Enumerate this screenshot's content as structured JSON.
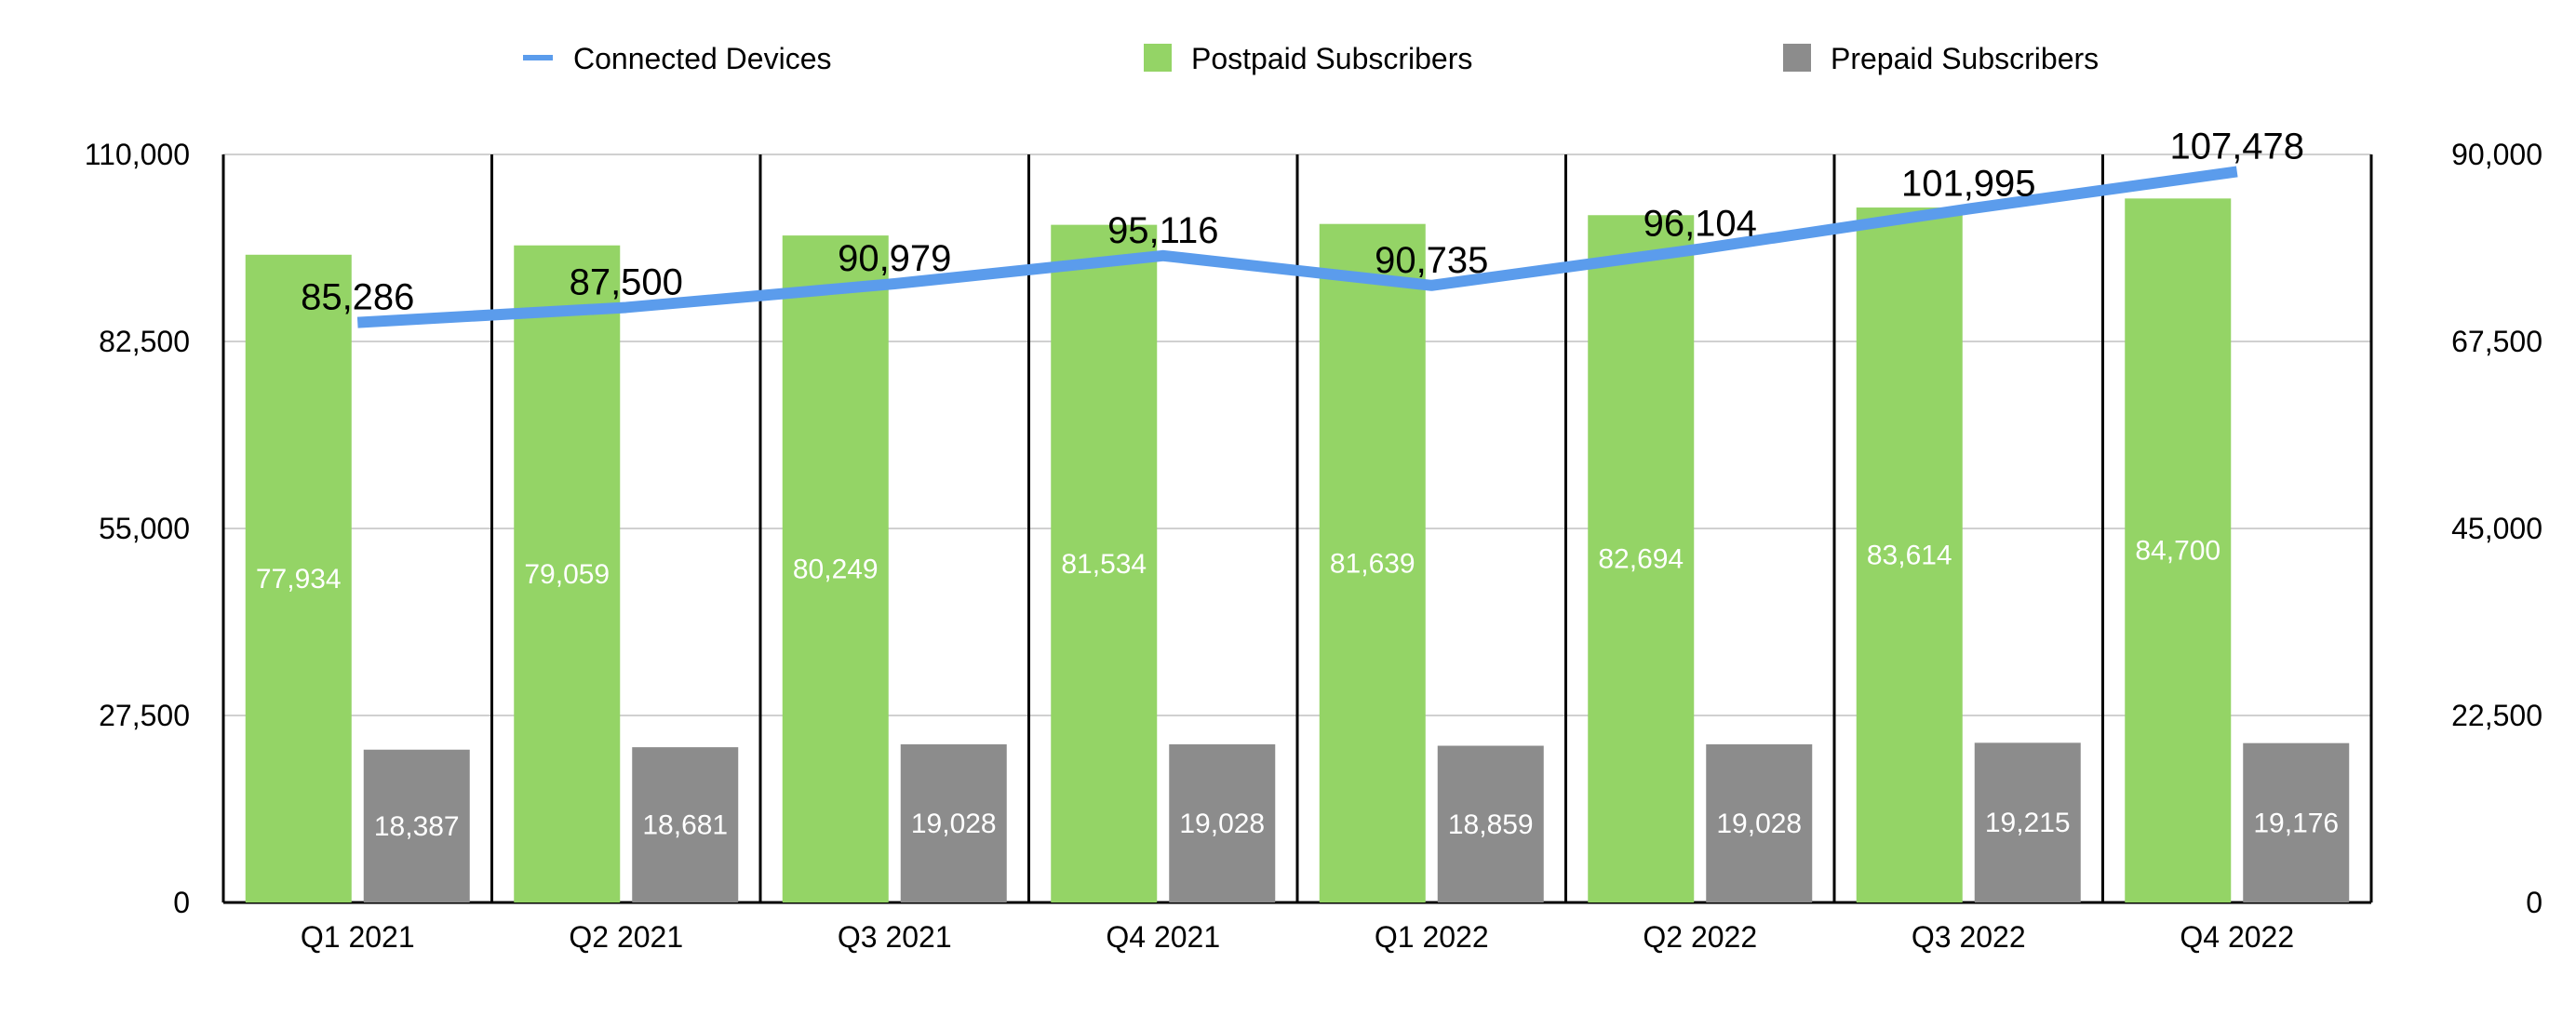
{
  "chart_data": {
    "type": "bar",
    "categories": [
      "Q1 2021",
      "Q2 2021",
      "Q3 2021",
      "Q4 2021",
      "Q1 2022",
      "Q2 2022",
      "Q3 2022",
      "Q4 2022"
    ],
    "left_axis": {
      "ylim": [
        0,
        110000
      ],
      "ticks": [
        "0",
        "27,500",
        "55,000",
        "82,500",
        "110,000"
      ]
    },
    "right_axis": {
      "ylim": [
        0,
        90000
      ],
      "ticks": [
        "0",
        "22,500",
        "45,000",
        "67,500",
        "90,000"
      ]
    },
    "series": [
      {
        "name": "Connected Devices",
        "kind": "line",
        "axis": "left",
        "color": "#5b9cec",
        "values": [
          85286,
          87500,
          90979,
          95116,
          90735,
          96104,
          101995,
          107478
        ],
        "labels": [
          "85,286",
          "87,500",
          "90,979",
          "95,116",
          "90,735",
          "96,104",
          "101,995",
          "107,478"
        ]
      },
      {
        "name": "Postpaid Subscribers",
        "kind": "bar",
        "axis": "right",
        "color": "#94d466",
        "values": [
          77934,
          79059,
          80249,
          81534,
          81639,
          82694,
          83614,
          84700
        ],
        "labels": [
          "77,934",
          "79,059",
          "80,249",
          "81,534",
          "81,639",
          "82,694",
          "83,614",
          "84,700"
        ]
      },
      {
        "name": "Prepaid Subscribers",
        "kind": "bar",
        "axis": "right",
        "color": "#8c8c8c",
        "values": [
          18387,
          18681,
          19028,
          19028,
          18859,
          19028,
          19215,
          19176
        ],
        "labels": [
          "18,387",
          "18,681",
          "19,028",
          "19,028",
          "18,859",
          "19,028",
          "19,215",
          "19,176"
        ]
      }
    ],
    "grid": true,
    "legend_position": "top"
  }
}
